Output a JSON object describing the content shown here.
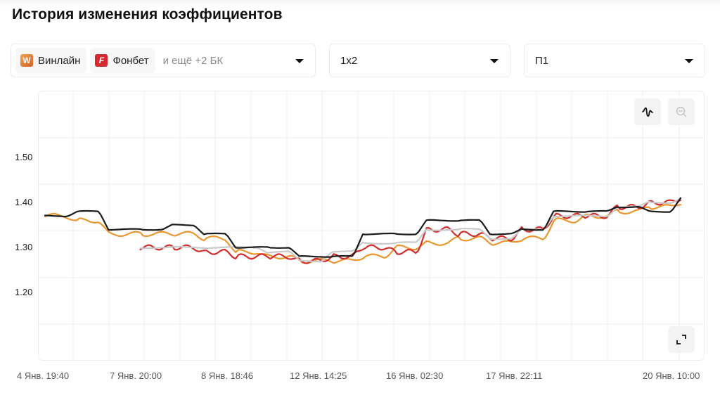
{
  "page": {
    "title": "История изменения коэффициентов"
  },
  "filters": {
    "bookmakers": {
      "chips": [
        {
          "name": "Винлайн",
          "logo_letter": "W",
          "logo_color": "#e07a34",
          "icon": "winline-logo-icon"
        },
        {
          "name": "Фонбет",
          "logo_letter": "F",
          "logo_color": "#d42a2f",
          "icon": "fonbet-logo-icon"
        }
      ],
      "more_label": "и ещё +2 БК"
    },
    "market": {
      "value": "1x2"
    },
    "outcome": {
      "value": "П1"
    }
  },
  "controls": {
    "smooth_toggle_icon": "wave-icon",
    "zoom_out_icon": "zoom-out-icon",
    "zoom_out_enabled": false,
    "fullscreen_icon": "expand-icon"
  },
  "chart_data": {
    "type": "line",
    "title": "История изменения коэффициентов",
    "xlabel": "",
    "ylabel": "",
    "y_ticks": [
      "1.50",
      "1.40",
      "1.30",
      "1.20"
    ],
    "ylim": [
      1.11,
      1.56
    ],
    "x_tick_labels": [
      "4 Янв. 19:40",
      "7 Янв. 20:00",
      "8 Янв. 18:46",
      "12 Янв. 14:25",
      "16 Янв. 02:30",
      "17 Янв. 22:11",
      "20 Янв. 10:00"
    ],
    "grid": true,
    "legend": "none (bookmakers selected via dropdown)",
    "x": [
      0,
      0.05,
      0.1,
      0.15,
      0.2,
      0.25,
      0.3,
      0.35,
      0.4,
      0.45,
      0.5,
      0.55,
      0.6,
      0.65,
      0.7,
      0.75,
      0.8,
      0.85,
      0.9,
      0.95,
      1.0
    ],
    "series": [
      {
        "name": "Black",
        "color": "#1a1a1a",
        "values": [
          1.37,
          1.38,
          1.34,
          1.34,
          1.35,
          1.33,
          1.3,
          1.3,
          1.28,
          1.28,
          1.33,
          1.33,
          1.36,
          1.36,
          1.33,
          1.34,
          1.38,
          1.38,
          1.39,
          1.38,
          1.41
        ]
      },
      {
        "name": "Orange",
        "color": "#e9962f",
        "values": [
          1.37,
          1.36,
          1.33,
          1.33,
          1.33,
          1.32,
          1.29,
          1.28,
          1.27,
          1.27,
          1.28,
          1.3,
          1.31,
          1.32,
          1.31,
          1.32,
          1.36,
          1.37,
          1.38,
          1.39,
          1.4
        ]
      },
      {
        "name": "Red",
        "color": "#d12d2d",
        "values": [
          null,
          null,
          null,
          1.3,
          1.3,
          1.29,
          1.28,
          1.28,
          1.27,
          1.28,
          1.3,
          1.29,
          1.34,
          1.33,
          1.32,
          1.34,
          1.37,
          1.37,
          1.39,
          1.4,
          1.41
        ]
      },
      {
        "name": "Grey",
        "color": "#c9c9c9",
        "values": [
          null,
          null,
          null,
          1.3,
          1.3,
          1.3,
          1.3,
          1.29,
          1.27,
          1.29,
          1.31,
          1.31,
          1.34,
          1.34,
          1.32,
          1.34,
          1.37,
          1.37,
          1.39,
          1.4,
          1.41
        ]
      }
    ]
  }
}
